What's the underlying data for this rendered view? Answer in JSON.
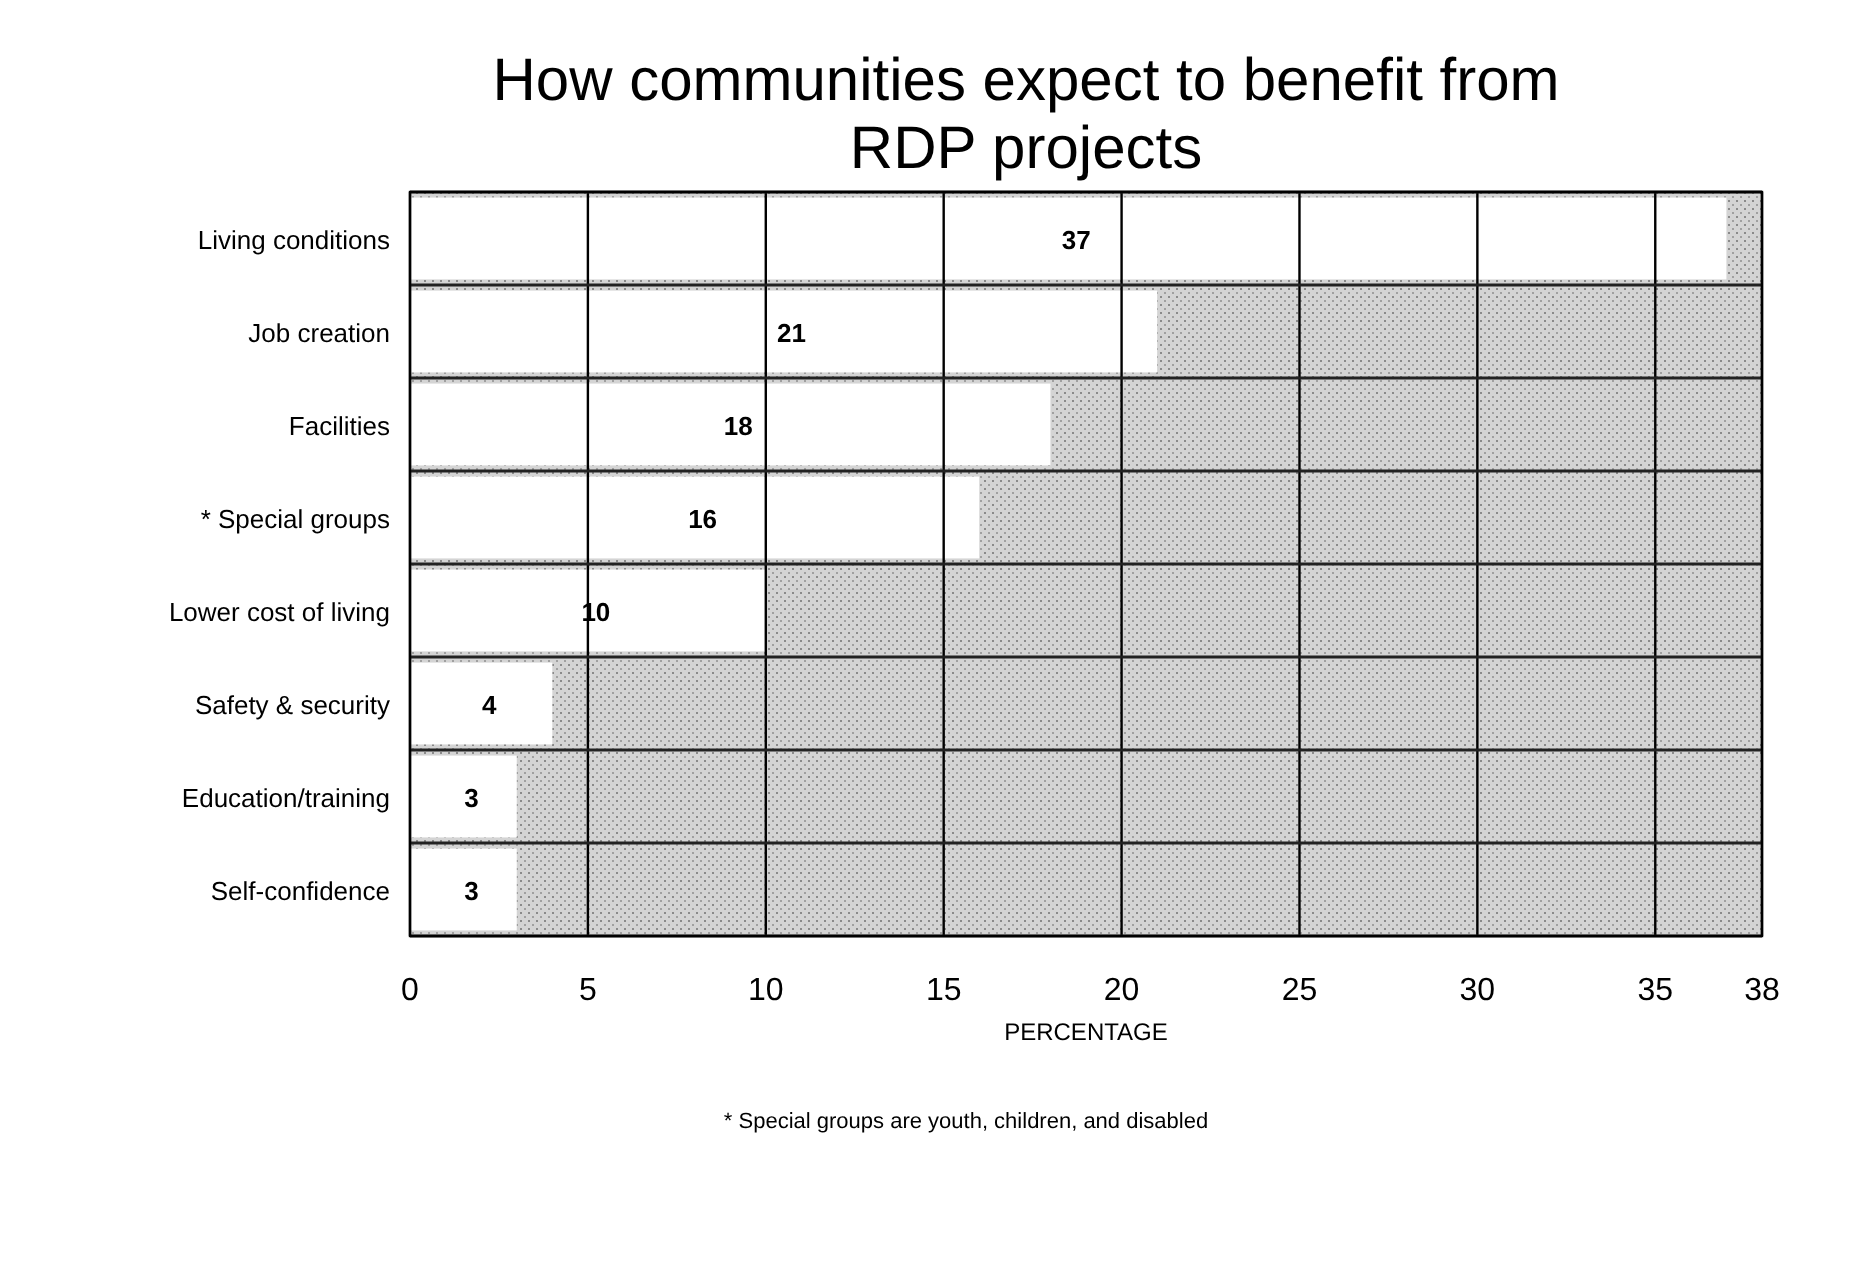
{
  "chart_data": {
    "type": "bar",
    "orientation": "horizontal",
    "title": "How communities expect to benefit from RDP projects",
    "xlabel": "PERCENTAGE",
    "categories": [
      "Living conditions",
      "Job creation",
      "Facilities",
      "* Special groups",
      "Lower cost of living",
      "Safety & security",
      "Education/training",
      "Self-confidence"
    ],
    "values": [
      37,
      21,
      18,
      16,
      10,
      4,
      3,
      3
    ],
    "color": "#ffffff",
    "data_labels": true,
    "xlim": [
      0,
      38
    ],
    "xticks": [
      0,
      5,
      10,
      15,
      20,
      25,
      30,
      35,
      38
    ],
    "grid": true,
    "annotations": [
      "* Special groups are youth, children, and disabled"
    ]
  }
}
